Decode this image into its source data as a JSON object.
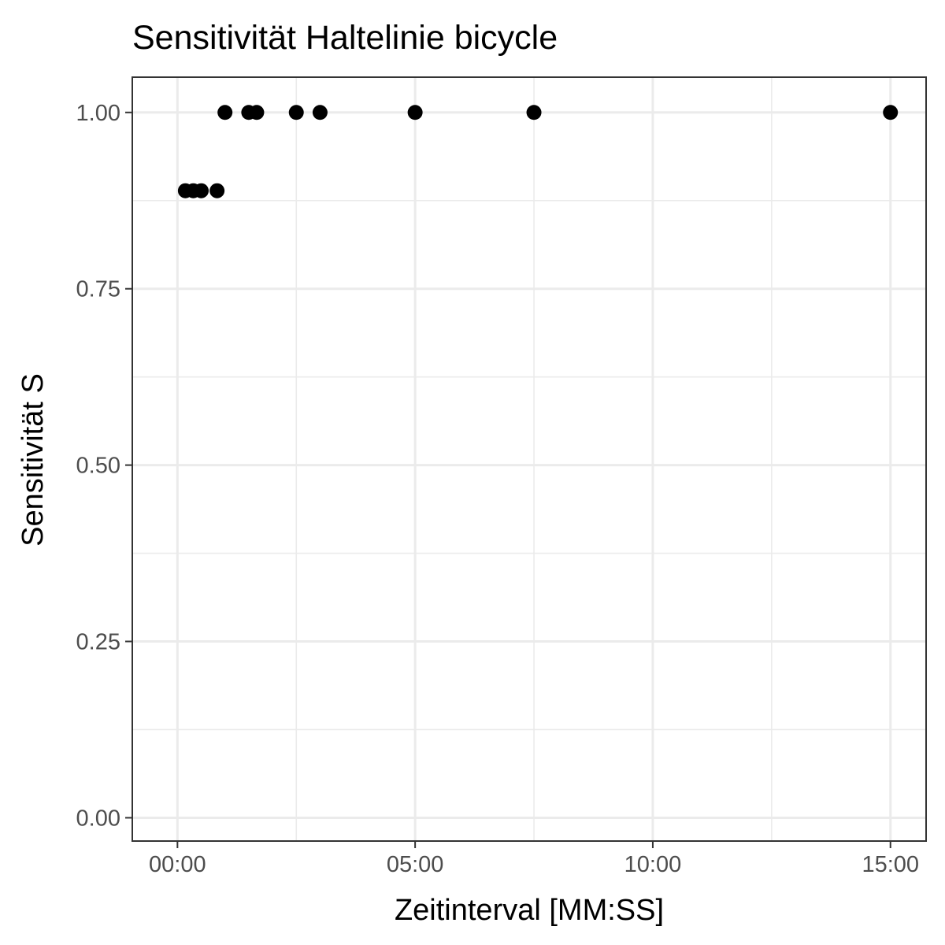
{
  "chart_data": {
    "type": "scatter",
    "title": "Sensitivität Haltelinie bicycle",
    "xlabel": "Zeitinterval [MM:SS]",
    "ylabel": "Sensitivität S",
    "x_unit": "MM:SS",
    "xlim": [
      "-00:57",
      "15:45"
    ],
    "ylim": [
      -0.033,
      1.05
    ],
    "x_ticks": [
      "00:00",
      "05:00",
      "10:00",
      "15:00"
    ],
    "y_ticks": [
      "0.00",
      "0.25",
      "0.50",
      "0.75",
      "1.00"
    ],
    "grid": true,
    "point_color": "#000000",
    "points": [
      {
        "x": "00:10",
        "y": 0.889
      },
      {
        "x": "00:20",
        "y": 0.889
      },
      {
        "x": "00:30",
        "y": 0.889
      },
      {
        "x": "00:50",
        "y": 0.889
      },
      {
        "x": "01:00",
        "y": 1.0
      },
      {
        "x": "01:30",
        "y": 1.0
      },
      {
        "x": "01:40",
        "y": 1.0
      },
      {
        "x": "02:30",
        "y": 1.0
      },
      {
        "x": "03:00",
        "y": 1.0
      },
      {
        "x": "05:00",
        "y": 1.0
      },
      {
        "x": "07:30",
        "y": 1.0
      },
      {
        "x": "15:00",
        "y": 1.0
      }
    ]
  }
}
